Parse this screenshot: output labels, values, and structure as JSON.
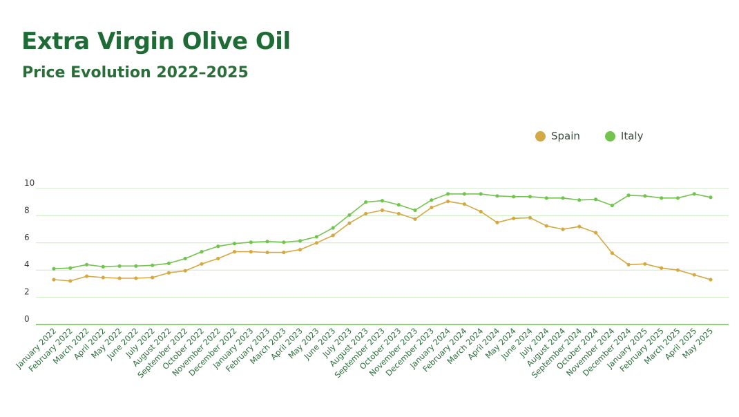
{
  "header": {
    "title": "Extra Virgin Olive Oil",
    "subtitle": "Price Evolution 2022–2025"
  },
  "colors": {
    "spain": "#d4a843",
    "italy": "#72c44e",
    "grid": "#c9ecc0",
    "axis": "#6cc24a"
  },
  "legend": [
    {
      "name": "Spain",
      "color": "#d4a843"
    },
    {
      "name": "Italy",
      "color": "#72c44e"
    }
  ],
  "chart_data": {
    "type": "line",
    "title": "Extra Virgin Olive Oil",
    "subtitle": "Price Evolution 2022–2025",
    "xlabel": "",
    "ylabel": "",
    "ylim": [
      0,
      10
    ],
    "yticks": [
      0,
      2,
      4,
      6,
      8,
      10
    ],
    "grid": true,
    "legend_position": "top-right",
    "x": [
      "January 2022",
      "February 2022",
      "March 2022",
      "April 2022",
      "May 2022",
      "June 2022",
      "July 2022",
      "August 2022",
      "September 2022",
      "October 2022",
      "November 2022",
      "December 2022",
      "January 2023",
      "February 2023",
      "March 2023",
      "April 2023",
      "May 2023",
      "June 2023",
      "July 2023",
      "August 2023",
      "September 2023",
      "October 2023",
      "November 2023",
      "December 2023",
      "January 2024",
      "February 2024",
      "March 2024",
      "April 2024",
      "May 2024",
      "June 2024",
      "July 2024",
      "August 2024",
      "September 2024",
      "October 2024",
      "November 2024",
      "December 2024",
      "January 2025",
      "February 2025",
      "March 2025",
      "April 2025",
      "May 2025"
    ],
    "series": [
      {
        "name": "Spain",
        "color": "#d4a843",
        "values": [
          3.3,
          3.2,
          3.55,
          3.45,
          3.4,
          3.4,
          3.45,
          3.8,
          3.95,
          4.45,
          4.85,
          5.35,
          5.35,
          5.3,
          5.3,
          5.5,
          6.0,
          6.55,
          7.45,
          8.15,
          8.4,
          8.15,
          7.75,
          8.6,
          9.05,
          8.85,
          8.3,
          7.5,
          7.8,
          7.85,
          7.25,
          7.0,
          7.2,
          6.75,
          5.25,
          4.4,
          4.45,
          4.15,
          4.0,
          3.65,
          3.3
        ]
      },
      {
        "name": "Italy",
        "color": "#72c44e",
        "values": [
          4.1,
          4.15,
          4.4,
          4.25,
          4.3,
          4.3,
          4.35,
          4.5,
          4.85,
          5.35,
          5.75,
          5.95,
          6.05,
          6.1,
          6.05,
          6.15,
          6.45,
          7.1,
          8.05,
          9.0,
          9.1,
          8.8,
          8.4,
          9.15,
          9.6,
          9.6,
          9.6,
          9.45,
          9.4,
          9.4,
          9.3,
          9.3,
          9.15,
          9.2,
          8.75,
          9.5,
          9.45,
          9.3,
          9.3,
          9.6,
          9.35
        ]
      }
    ]
  }
}
